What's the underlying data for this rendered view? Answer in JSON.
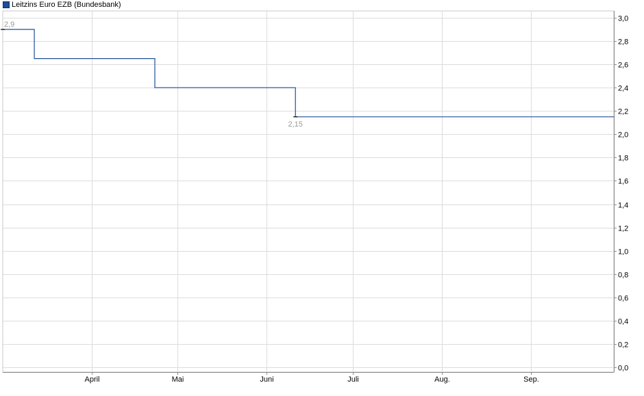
{
  "chart_data": {
    "type": "line",
    "series": [
      {
        "name": "Leitzins Euro EZB (Bundesbank)",
        "color": "#1f4e99",
        "points": [
          {
            "x": "2025-03-01",
            "y": 2.9
          },
          {
            "x": "2025-03-12",
            "y": 2.9
          },
          {
            "x": "2025-03-12",
            "y": 2.65
          },
          {
            "x": "2025-04-23",
            "y": 2.65
          },
          {
            "x": "2025-04-23",
            "y": 2.4
          },
          {
            "x": "2025-06-11",
            "y": 2.4
          },
          {
            "x": "2025-06-11",
            "y": 2.15
          },
          {
            "x": "2025-09-30",
            "y": 2.15
          }
        ]
      }
    ],
    "annotations": [
      {
        "x": "2025-03-01",
        "y": 2.9,
        "label": "2,9"
      },
      {
        "x": "2025-06-11",
        "y": 2.15,
        "label": "2,15"
      }
    ],
    "x_ticks": [
      {
        "x": "2025-04-01",
        "label": "April"
      },
      {
        "x": "2025-05-01",
        "label": "Mai"
      },
      {
        "x": "2025-06-01",
        "label": "Juni"
      },
      {
        "x": "2025-07-01",
        "label": "Juli"
      },
      {
        "x": "2025-08-01",
        "label": "Aug."
      },
      {
        "x": "2025-09-01",
        "label": "Sep."
      }
    ],
    "y_ticks": [
      {
        "y": 0.0,
        "label": "0,0"
      },
      {
        "y": 0.2,
        "label": "0,2"
      },
      {
        "y": 0.4,
        "label": "0,4"
      },
      {
        "y": 0.6,
        "label": "0,6"
      },
      {
        "y": 0.8,
        "label": "0,8"
      },
      {
        "y": 1.0,
        "label": "1,0"
      },
      {
        "y": 1.2,
        "label": "1,2"
      },
      {
        "y": 1.4,
        "label": "1,4"
      },
      {
        "y": 1.6,
        "label": "1,6"
      },
      {
        "y": 1.8,
        "label": "1,8"
      },
      {
        "y": 2.0,
        "label": "2,0"
      },
      {
        "y": 2.2,
        "label": "2,2"
      },
      {
        "y": 2.4,
        "label": "2,4"
      },
      {
        "y": 2.6,
        "label": "2,6"
      },
      {
        "y": 2.8,
        "label": "2,8"
      },
      {
        "y": 3.0,
        "label": "3,0"
      }
    ],
    "xlim": [
      "2025-03-01",
      "2025-09-30"
    ],
    "ylim": [
      0,
      3.0
    ],
    "grid": true,
    "legend_position": "top-left",
    "y_axis_side": "right"
  }
}
